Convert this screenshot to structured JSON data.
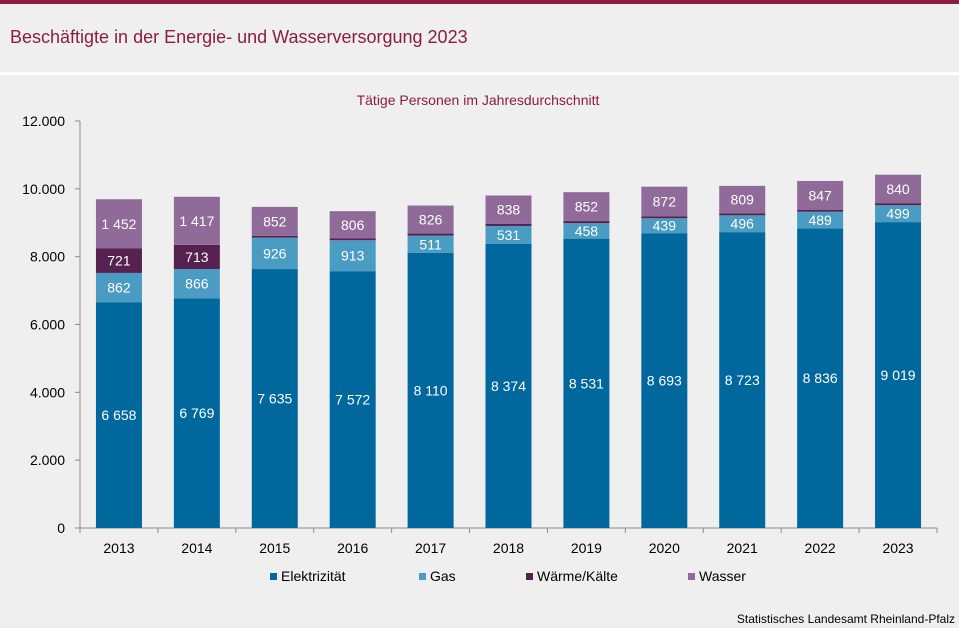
{
  "header": {
    "title": "Beschäftigte in der Energie- und Wasserversorgung 2023"
  },
  "footer": {
    "source": "Statistisches Landesamt  Rheinland-Pfalz"
  },
  "chart_data": {
    "type": "bar",
    "stacked": true,
    "title": "Tätige Personen im Jahresdurchschnitt",
    "xlabel": "",
    "ylabel": "",
    "ylim": [
      0,
      12000
    ],
    "yticks": [
      0,
      2000,
      4000,
      6000,
      8000,
      10000,
      12000
    ],
    "ytick_labels": [
      "0",
      "2.000",
      "4.000",
      "6.000",
      "8.000",
      "10.000",
      "12.000"
    ],
    "grid": false,
    "legend_position": "bottom",
    "categories": [
      "2013",
      "2014",
      "2015",
      "2016",
      "2017",
      "2018",
      "2019",
      "2020",
      "2021",
      "2022",
      "2023"
    ],
    "series": [
      {
        "name": "Elektrizität",
        "color": "#00689d",
        "label_color": "#ffffff",
        "values": [
          6658,
          6769,
          7635,
          7572,
          8110,
          8374,
          8531,
          8693,
          8723,
          8836,
          9019
        ],
        "labels": [
          "6 658",
          "6 769",
          "7 635",
          "7 572",
          "8 110",
          "8 374",
          "8 531",
          "8 693",
          "8 723",
          "8 836",
          "9 019"
        ]
      },
      {
        "name": "Gas",
        "color": "#4a9cc2",
        "label_color": "#ffffff",
        "values": [
          862,
          866,
          926,
          913,
          511,
          531,
          458,
          439,
          496,
          489,
          499
        ],
        "labels": [
          "862",
          "866",
          "926",
          "913",
          "511",
          "531",
          "458",
          "439",
          "496",
          "489",
          "499"
        ]
      },
      {
        "name": "Wärme/Kälte",
        "color": "#56214f",
        "label_color": "#ffffff",
        "values": [
          721,
          713,
          55,
          50,
          60,
          60,
          60,
          60,
          60,
          60,
          60
        ],
        "labels": [
          "721",
          "713",
          "",
          "",
          "",
          "",
          "",
          "",
          "",
          "",
          ""
        ]
      },
      {
        "name": "Wasser",
        "color": "#906a98",
        "label_color": "#ffffff",
        "values": [
          1452,
          1417,
          852,
          806,
          826,
          838,
          852,
          872,
          809,
          847,
          840
        ],
        "labels": [
          "1 452",
          "1 417",
          "852",
          "806",
          "826",
          "838",
          "852",
          "872",
          "809",
          "847",
          "840"
        ]
      }
    ]
  }
}
